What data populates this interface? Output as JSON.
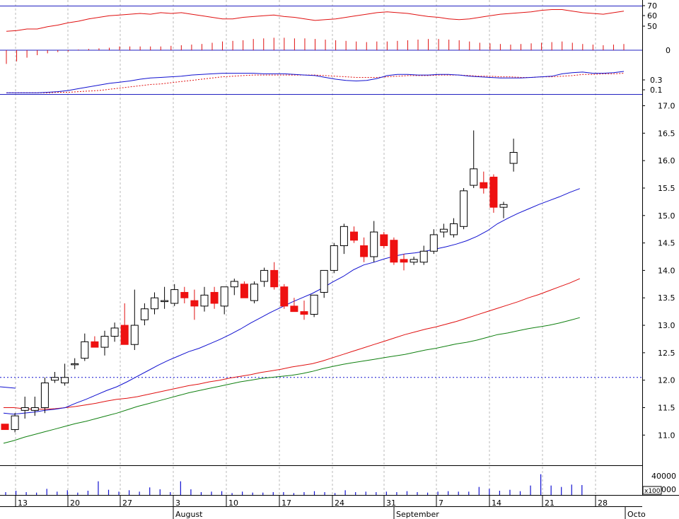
{
  "chart_data": {
    "type": "candlestick",
    "x_axis": {
      "day_ticks": [
        "13",
        "20",
        "27",
        "3",
        "10",
        "17",
        "24",
        "31",
        "7",
        "14",
        "21",
        "28"
      ],
      "month_labels": [
        "August",
        "September",
        "Octo"
      ]
    },
    "rsi_panel": {
      "ticks": [
        "70",
        "60",
        "50"
      ],
      "ylim": [
        35,
        75
      ],
      "line": [
        42,
        43,
        45,
        45,
        48,
        50,
        53,
        55,
        58,
        60,
        62,
        63,
        64,
        65,
        64,
        66,
        65,
        66,
        64,
        62,
        60,
        58,
        58,
        60,
        61,
        62,
        63,
        61,
        60,
        58,
        56,
        57,
        58,
        60,
        62,
        64,
        66,
        67,
        66,
        65,
        63,
        61,
        60,
        58,
        57,
        58,
        60,
        62,
        64,
        65,
        66,
        67,
        69,
        70,
        70,
        68,
        66,
        65,
        64,
        66,
        68
      ]
    },
    "histogram_panel": {
      "ticks": [
        "0"
      ],
      "bars": [
        -22,
        -18,
        -12,
        -8,
        -5,
        -3,
        -2,
        1,
        2,
        3,
        4,
        6,
        6,
        6,
        6,
        6,
        7,
        8,
        9,
        10,
        12,
        14,
        15,
        16,
        18,
        19,
        20,
        20,
        19,
        19,
        18,
        17,
        16,
        15,
        14,
        13,
        14,
        14,
        15,
        16,
        17,
        18,
        18,
        17,
        16,
        14,
        12,
        11,
        10,
        9,
        10,
        11,
        12,
        13,
        14,
        12,
        10,
        9,
        8,
        9,
        10
      ]
    },
    "macd_panel": {
      "ticks": [
        "0.3",
        "0.1"
      ],
      "ylim": [
        0.08,
        0.52
      ],
      "macd": [
        0.1,
        0.1,
        0.1,
        0.1,
        0.11,
        0.12,
        0.14,
        0.17,
        0.2,
        0.23,
        0.26,
        0.28,
        0.3,
        0.33,
        0.35,
        0.36,
        0.37,
        0.38,
        0.4,
        0.41,
        0.42,
        0.43,
        0.43,
        0.43,
        0.43,
        0.42,
        0.42,
        0.42,
        0.41,
        0.4,
        0.39,
        0.36,
        0.33,
        0.31,
        0.3,
        0.31,
        0.34,
        0.39,
        0.41,
        0.41,
        0.4,
        0.4,
        0.41,
        0.41,
        0.4,
        0.38,
        0.37,
        0.36,
        0.35,
        0.35,
        0.35,
        0.36,
        0.37,
        0.38,
        0.42,
        0.44,
        0.45,
        0.43,
        0.43,
        0.44,
        0.46
      ],
      "signal": [
        0.1,
        0.1,
        0.1,
        0.1,
        0.1,
        0.11,
        0.11,
        0.12,
        0.13,
        0.14,
        0.16,
        0.18,
        0.2,
        0.22,
        0.24,
        0.25,
        0.27,
        0.29,
        0.31,
        0.33,
        0.35,
        0.37,
        0.38,
        0.39,
        0.4,
        0.4,
        0.4,
        0.4,
        0.4,
        0.4,
        0.4,
        0.39,
        0.38,
        0.37,
        0.36,
        0.36,
        0.36,
        0.37,
        0.38,
        0.39,
        0.39,
        0.39,
        0.4,
        0.4,
        0.4,
        0.39,
        0.38,
        0.38,
        0.37,
        0.37,
        0.36,
        0.36,
        0.37,
        0.37,
        0.38,
        0.39,
        0.41,
        0.41,
        0.42,
        0.42,
        0.43
      ]
    },
    "price_panel": {
      "ticks": [
        "17.0",
        "16.5",
        "16.0",
        "15.5",
        "15.0",
        "14.5",
        "14.0",
        "13.5",
        "13.0",
        "12.5",
        "12.0",
        "11.5",
        "11.0"
      ],
      "ylim": [
        10.45,
        17.2
      ],
      "reference_level": 12.05,
      "ohlc": [
        [
          11.2,
          11.2,
          11.1,
          11.1
        ],
        [
          11.1,
          11.4,
          11.05,
          11.35
        ],
        [
          11.45,
          11.7,
          11.3,
          11.5
        ],
        [
          11.45,
          11.7,
          11.35,
          11.5
        ],
        [
          11.5,
          12.05,
          11.4,
          11.95
        ],
        [
          12.0,
          12.15,
          11.95,
          12.05
        ],
        [
          11.95,
          12.3,
          11.9,
          12.05
        ],
        [
          12.3,
          12.4,
          12.2,
          12.3
        ],
        [
          12.4,
          12.85,
          12.35,
          12.7
        ],
        [
          12.7,
          12.8,
          12.6,
          12.6
        ],
        [
          12.6,
          12.9,
          12.45,
          12.8
        ],
        [
          12.8,
          13.05,
          12.7,
          12.95
        ],
        [
          13.0,
          13.4,
          12.7,
          12.65
        ],
        [
          12.65,
          13.65,
          12.55,
          13.0
        ],
        [
          13.1,
          13.4,
          13.0,
          13.3
        ],
        [
          13.3,
          13.6,
          13.2,
          13.5
        ],
        [
          13.45,
          13.7,
          13.3,
          13.45
        ],
        [
          13.4,
          13.75,
          13.35,
          13.65
        ],
        [
          13.6,
          13.7,
          13.4,
          13.5
        ],
        [
          13.45,
          13.65,
          13.1,
          13.35
        ],
        [
          13.35,
          13.7,
          13.25,
          13.55
        ],
        [
          13.6,
          13.7,
          13.3,
          13.4
        ],
        [
          13.35,
          13.7,
          13.2,
          13.7
        ],
        [
          13.7,
          13.85,
          13.55,
          13.8
        ],
        [
          13.75,
          13.8,
          13.5,
          13.5
        ],
        [
          13.45,
          13.8,
          13.4,
          13.75
        ],
        [
          13.8,
          14.05,
          13.7,
          14.0
        ],
        [
          14.0,
          14.15,
          13.65,
          13.7
        ],
        [
          13.7,
          13.75,
          13.3,
          13.35
        ],
        [
          13.35,
          13.5,
          13.25,
          13.25
        ],
        [
          13.25,
          13.45,
          13.1,
          13.2
        ],
        [
          13.2,
          13.5,
          13.15,
          13.55
        ],
        [
          13.6,
          14.0,
          13.5,
          14.0
        ],
        [
          14.0,
          14.5,
          13.95,
          14.45
        ],
        [
          14.45,
          14.85,
          14.3,
          14.8
        ],
        [
          14.7,
          14.8,
          14.5,
          14.55
        ],
        [
          14.45,
          14.6,
          14.15,
          14.25
        ],
        [
          14.25,
          14.9,
          14.15,
          14.7
        ],
        [
          14.65,
          14.7,
          14.4,
          14.45
        ],
        [
          14.55,
          14.6,
          14.1,
          14.15
        ],
        [
          14.2,
          14.3,
          14.0,
          14.15
        ],
        [
          14.15,
          14.25,
          14.1,
          14.2
        ],
        [
          14.15,
          14.45,
          14.1,
          14.35
        ],
        [
          14.35,
          14.75,
          14.3,
          14.65
        ],
        [
          14.7,
          14.85,
          14.6,
          14.75
        ],
        [
          14.65,
          14.95,
          14.6,
          14.85
        ],
        [
          14.8,
          15.5,
          14.75,
          15.45
        ],
        [
          15.55,
          16.55,
          15.5,
          15.85
        ],
        [
          15.6,
          15.8,
          15.4,
          15.5
        ],
        [
          15.7,
          15.75,
          15.05,
          15.15
        ],
        [
          15.15,
          15.25,
          14.95,
          15.2
        ],
        [
          15.95,
          16.4,
          15.8,
          16.15
        ]
      ],
      "ma_blue": [
        11.4,
        11.38,
        11.4,
        11.42,
        11.45,
        11.47,
        11.5,
        11.58,
        11.65,
        11.73,
        11.81,
        11.88,
        11.97,
        12.07,
        12.17,
        12.27,
        12.36,
        12.44,
        12.52,
        12.58,
        12.66,
        12.74,
        12.83,
        12.93,
        13.04,
        13.14,
        13.24,
        13.33,
        13.42,
        13.5,
        13.58,
        13.68,
        13.79,
        13.89,
        14.01,
        14.1,
        14.15,
        14.21,
        14.26,
        14.3,
        14.32,
        14.35,
        14.39,
        14.43,
        14.48,
        14.54,
        14.62,
        14.72,
        14.85,
        14.95,
        15.04,
        15.12,
        15.2,
        15.27,
        15.34,
        15.42,
        15.49
      ],
      "ma_red": [
        11.5,
        11.5,
        11.48,
        11.47,
        11.47,
        11.48,
        11.5,
        11.52,
        11.55,
        11.58,
        11.62,
        11.65,
        11.67,
        11.7,
        11.74,
        11.78,
        11.82,
        11.86,
        11.9,
        11.93,
        11.97,
        12.0,
        12.04,
        12.07,
        12.1,
        12.14,
        12.17,
        12.2,
        12.24,
        12.27,
        12.3,
        12.35,
        12.41,
        12.47,
        12.53,
        12.59,
        12.65,
        12.71,
        12.77,
        12.83,
        12.88,
        12.93,
        12.97,
        13.02,
        13.07,
        13.13,
        13.19,
        13.25,
        13.31,
        13.37,
        13.43,
        13.5,
        13.56,
        13.63,
        13.7,
        13.77,
        13.85
      ],
      "ma_green": [
        10.85,
        10.9,
        10.96,
        11.01,
        11.06,
        11.11,
        11.16,
        11.21,
        11.25,
        11.3,
        11.35,
        11.4,
        11.46,
        11.52,
        11.57,
        11.62,
        11.67,
        11.72,
        11.77,
        11.81,
        11.85,
        11.89,
        11.93,
        11.97,
        12.0,
        12.03,
        12.05,
        12.07,
        12.09,
        12.12,
        12.16,
        12.21,
        12.25,
        12.29,
        12.32,
        12.35,
        12.38,
        12.41,
        12.44,
        12.47,
        12.51,
        12.55,
        12.58,
        12.62,
        12.66,
        12.69,
        12.73,
        12.78,
        12.83,
        12.86,
        12.9,
        12.94,
        12.97,
        13.0,
        13.04,
        13.09,
        13.14
      ],
      "ma_blue_tail_start": 11.88
    },
    "volume_panel": {
      "ticks": [
        "40000",
        "20000"
      ],
      "scale_label": "x100",
      "ylim": [
        0,
        60000
      ],
      "values": [
        6000,
        9000,
        6000,
        5000,
        13000,
        7000,
        10000,
        5000,
        9000,
        29000,
        11000,
        7000,
        10000,
        7000,
        16000,
        12000,
        6000,
        29000,
        12000,
        6000,
        7000,
        8000,
        4000,
        7000,
        5000,
        5000,
        6000,
        6000,
        4000,
        6000,
        8000,
        6000,
        4000,
        10000,
        6000,
        7000,
        6000,
        7000,
        6000,
        8000,
        6000,
        5000,
        7000,
        8000,
        7000,
        7000,
        17000,
        13000,
        9000,
        11000,
        8000,
        20000,
        44000,
        20000,
        17000,
        22000,
        21000
      ]
    }
  }
}
